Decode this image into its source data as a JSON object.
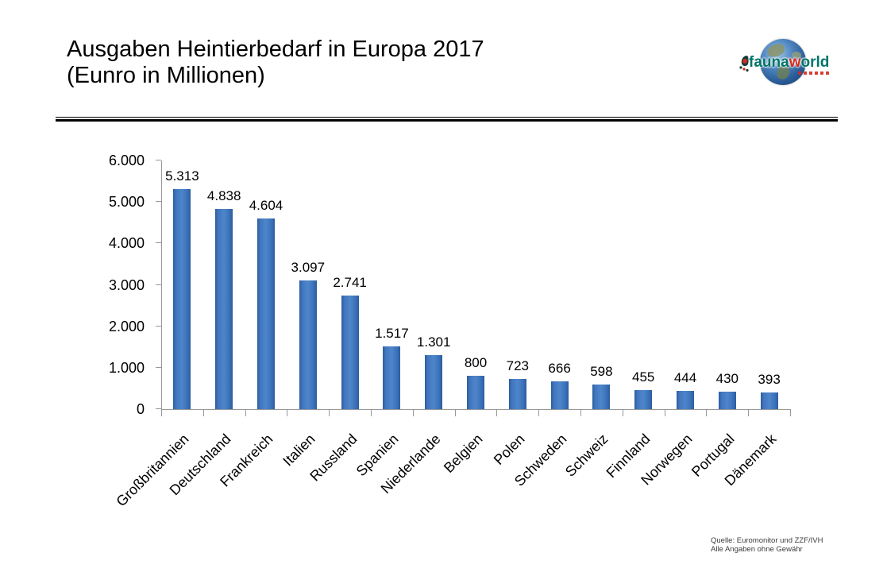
{
  "page": {
    "title_line1": "Ausgaben Heintierbedarf in Europa 2017",
    "title_line2": "(Eunro in Millionen)"
  },
  "logo": {
    "text_prefix": "fauna",
    "text_accent": "w",
    "text_suffix": "orld",
    "teal": "#007468",
    "red": "#d42a1e"
  },
  "footer": {
    "line1": "Quelle: Euromonitor und ZZF/IVH",
    "line2": "Alle Angaben ohne Gewähr"
  },
  "chart_data": {
    "type": "bar",
    "title": "Ausgaben Heintierbedarf in Europa 2017 (Eunro in Millionen)",
    "categories": [
      "Großbritannien",
      "Deutschland",
      "Frankreich",
      "Italien",
      "Russland",
      "Spanien",
      "Niederlande",
      "Belgien",
      "Polen",
      "Schweden",
      "Schweiz",
      "Finnland",
      "Norwegen",
      "Portugal",
      "Dänemark"
    ],
    "values": [
      5313,
      4838,
      4604,
      3097,
      2741,
      1517,
      1301,
      800,
      723,
      666,
      598,
      455,
      444,
      430,
      393
    ],
    "value_labels": [
      "5.313",
      "4.838",
      "4.604",
      "3.097",
      "2.741",
      "1.517",
      "1.301",
      "800",
      "723",
      "666",
      "598",
      "455",
      "444",
      "430",
      "393"
    ],
    "y_ticks": [
      "0",
      "1.000",
      "2.000",
      "3.000",
      "4.000",
      "5.000",
      "6.000"
    ],
    "ylim": [
      0,
      6000
    ],
    "xlabel": "",
    "ylabel": "",
    "bar_color": "#3e76bf",
    "grid": false,
    "legend": false
  }
}
